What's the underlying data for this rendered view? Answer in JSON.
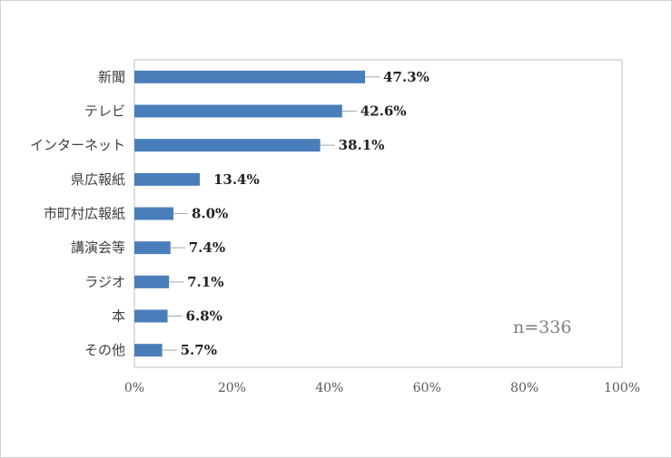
{
  "chart_data": {
    "type": "bar",
    "orientation": "horizontal",
    "categories": [
      "新聞",
      "テレビ",
      "インターネット",
      "県広報紙",
      "市町村広報紙",
      "講演会等",
      "ラジオ",
      "本",
      "その他"
    ],
    "values": [
      47.3,
      42.6,
      38.1,
      13.4,
      8.0,
      7.4,
      7.1,
      6.8,
      5.7
    ],
    "value_labels": [
      "47.3%",
      "42.6%",
      "38.1%",
      "13.4%",
      "8.0%",
      "7.4%",
      "7.1%",
      "6.8%",
      "5.7%"
    ],
    "xlim": [
      0,
      100
    ],
    "x_ticks": [
      "0%",
      "20%",
      "40%",
      "60%",
      "80%",
      "100%"
    ],
    "annotation": "n=336",
    "bar_color": "#4a7ebb",
    "grid": false,
    "legend": "none",
    "title": "",
    "xlabel": "",
    "ylabel": ""
  }
}
